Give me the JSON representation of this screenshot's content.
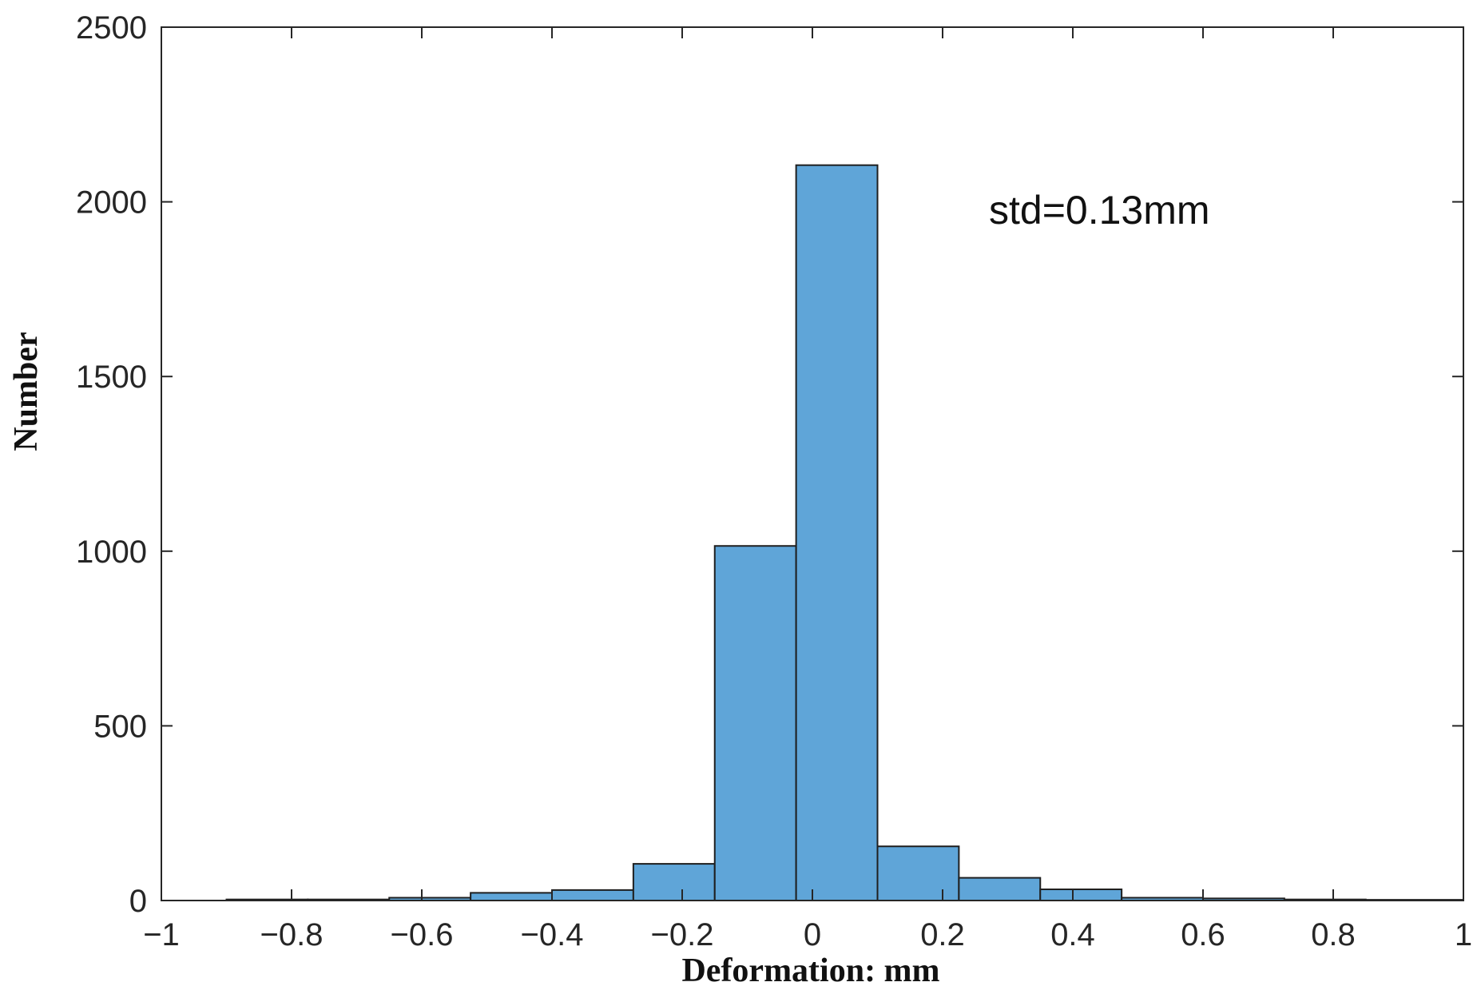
{
  "chart_data": {
    "type": "bar",
    "subtype": "histogram",
    "xlabel": "Deformation: mm",
    "ylabel": "Number",
    "xlim": [
      -1,
      1
    ],
    "ylim": [
      0,
      2500
    ],
    "xticks": [
      -1,
      -0.8,
      -0.6,
      -0.4,
      -0.2,
      0,
      0.2,
      0.4,
      0.6,
      0.8,
      1
    ],
    "xtick_labels": [
      "−1",
      "−0.8",
      "−0.6",
      "−0.4",
      "−0.2",
      "0",
      "0.2",
      "0.4",
      "0.6",
      "0.8",
      "1"
    ],
    "yticks": [
      0,
      500,
      1000,
      1500,
      2000,
      2500
    ],
    "ytick_labels": [
      "0",
      "500",
      "1000",
      "1500",
      "2000",
      "2500"
    ],
    "bin_edges": [
      -0.9,
      -0.775,
      -0.65,
      -0.525,
      -0.4,
      -0.275,
      -0.15,
      -0.025,
      0.1,
      0.225,
      0.35,
      0.475,
      0.6,
      0.725,
      0.85,
      1.0
    ],
    "values": [
      3,
      3,
      8,
      22,
      30,
      105,
      1015,
      2105,
      155,
      65,
      32,
      8,
      6,
      3,
      2
    ],
    "bar_color": "#5fa5d8",
    "edge_color": "#1f1f1f",
    "grid": false,
    "annotation": "std=0.13mm"
  }
}
